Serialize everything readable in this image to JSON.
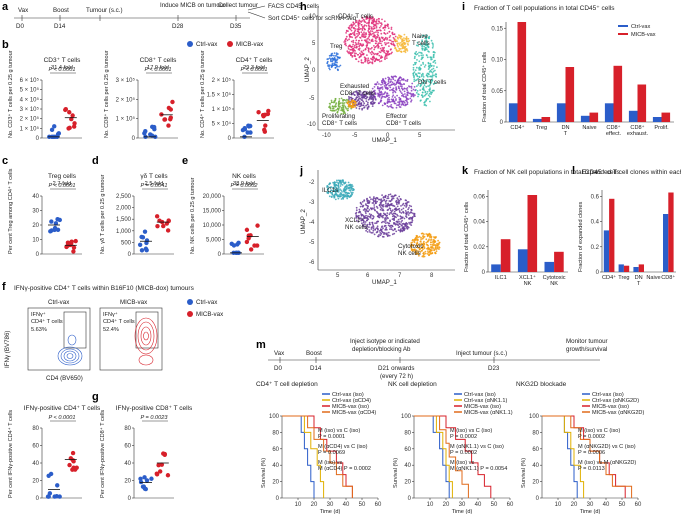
{
  "colors": {
    "ctrl": "#2b5dc9",
    "micb": "#d7202a",
    "cd4": "#e0307a",
    "naive": "#f6b93b",
    "dnt": "#3cbfae",
    "treg": "#2a6fdb",
    "exh": "#6a3d9a",
    "effector": "#8a3fbf",
    "prolif": "#76b041",
    "ilc1": "#39a9b9",
    "xcl1": "#6a3d9a",
    "cytotoxic": "#f39c12"
  },
  "panel_letters": {
    "a": "a",
    "b": "b",
    "c": "c",
    "d": "d",
    "e": "e",
    "f": "f",
    "g": "g",
    "h": "h",
    "i": "i",
    "j": "j",
    "k": "k",
    "l": "l",
    "m": "m"
  },
  "timeline_a": {
    "days": [
      "D0",
      "D14",
      "D28",
      "D35"
    ],
    "events": [
      "Vax",
      "Boost",
      "Tumour (s.c.)",
      "Induce MICB\non tumour",
      "Collect\ntumour"
    ],
    "notes": [
      "FACS CD45⁺ cells",
      "Sort CD45⁺ cells\nfor scRNA-seq"
    ]
  },
  "legend": {
    "ctrl": "Ctrl-vax",
    "micb": "MICB-vax"
  },
  "panels_b": [
    {
      "title": "CD3⁺ T cells",
      "fold": "31.4-fold",
      "p": "P < 0.0001",
      "ylabel": "No. CD3⁺ T cells per 0.25 g tumour",
      "yticks": [
        "0",
        "1 × 10⁵",
        "2 × 10⁵",
        "3 × 10⁵",
        "4 × 10⁵",
        "5 × 10⁵",
        "6 × 10⁵"
      ]
    },
    {
      "title": "CD8⁺ T cells",
      "fold": "17.9-fold",
      "p": "P < 0.0001",
      "ylabel": "No. CD8⁺ T cells per 0.25 g tumour",
      "yticks": [
        "0",
        "1 × 10⁵",
        "2 × 10⁵",
        "3 × 10⁵"
      ]
    },
    {
      "title": "CD4⁺ T cells",
      "fold": "29.3-fold",
      "p": "P < 0.0001",
      "ylabel": "No. CD4⁺ T cells per 0.25 g tumour",
      "yticks": [
        "0",
        "5 × 10⁴",
        "1 × 10⁵",
        "1.5 × 10⁵",
        "2 × 10⁵"
      ]
    }
  ],
  "panels_cde": [
    {
      "letter": "c",
      "title": "Treg cells",
      "fold": "2.7-fold",
      "p": "P < 0.0001",
      "ylabel": "Per cent Treg among CD4⁺ T cells",
      "yticks": [
        "0",
        "10",
        "20",
        "30",
        "40"
      ]
    },
    {
      "letter": "d",
      "title": "γδ T cells",
      "fold": "2.5-fold",
      "p": "P = 0.0041",
      "ylabel": "No. γδ T cells per 0.25 g tumour",
      "yticks": [
        "0",
        "500",
        "1,000",
        "1,500",
        "2,000",
        "2,500"
      ]
    },
    {
      "letter": "e",
      "title": "NK cells",
      "fold": "38.9-fold",
      "p": "P = 0.0002",
      "ylabel": "No. NK cells per 0.25 g tumour",
      "yticks": [
        "0",
        "5,000",
        "10,000",
        "15,000",
        "20,000"
      ]
    }
  ],
  "panel_f": {
    "title": "IFNγ-positive CD4⁺ T cells within B16F10 (MICB-dox) tumours",
    "ctrl_label": "Ctrl-vax",
    "micb_label": "MICB-vax",
    "gate_label": "IFNγ⁺\nCD4⁺ T cells",
    "ctrl_pct": "5.63%",
    "micb_pct": "52.4%",
    "xlabel": "CD4 (BV650)",
    "ylabel": "IFNγ (BV786)"
  },
  "panel_f2": {
    "title": "IFNγ-positive\nCD4⁺ T cells",
    "p": "P < 0.0001",
    "ylabel": "Per cent IFNγ-positive CD4⁺ T cells",
    "yticks": [
      "0",
      "20",
      "40",
      "60",
      "80"
    ]
  },
  "panel_g": {
    "title": "IFNγ-positive\nCD8⁺ T cells",
    "p": "P = 0.0023",
    "ylabel": "Per cent IFNγ-positive CD8⁺ T cells",
    "yticks": [
      "0",
      "20",
      "40",
      "60",
      "80"
    ]
  },
  "panel_h": {
    "xlabel": "UMAP_1",
    "ylabel": "UMAP_2",
    "xticks": [
      "-10",
      "-5",
      "0",
      "5"
    ],
    "yticks": [
      "-10",
      "-5",
      "0",
      "5",
      "10"
    ],
    "labels": {
      "cd4": "CD4⁺ T cells",
      "naive": "Naive\nT cells",
      "dnt": "DN T cells",
      "treg": "Treg",
      "exh": "Exhausted\nCD8⁺ T cells",
      "prolif": "Proliferating\nCD8⁺ T cells",
      "eff": "Effector\nCD8⁺ T cells"
    }
  },
  "panel_j": {
    "xlabel": "UMAP_1",
    "ylabel": "UMAP_2",
    "xticks": [
      "5",
      "6",
      "7",
      "8"
    ],
    "yticks": [
      "-2",
      "-3",
      "-4",
      "-5",
      "-6"
    ],
    "labels": {
      "ilc1": "ILC1s",
      "xcl1": "XCL1⁺\nNK cells",
      "cyto": "Cytotoxic\nNK cells"
    }
  },
  "chart_data": [
    {
      "type": "bar",
      "id": "i",
      "title": "Fraction of T cell populations in total CD45⁺ cells",
      "ylabel": "Fraction of total CD45⁺ cells",
      "ylim": [
        0,
        0.16
      ],
      "yticks": [
        "0",
        "0.05",
        "0.10",
        "0.15"
      ],
      "categories": [
        "CD4⁺",
        "Treg",
        "DN T",
        "Naive",
        "CD8⁺ effect.",
        "CD8⁺ exhaust.",
        "Prolif."
      ],
      "series": [
        {
          "name": "Ctrl-vax",
          "values": [
            0.03,
            0.005,
            0.03,
            0.01,
            0.03,
            0.018,
            0.008
          ]
        },
        {
          "name": "MICB-vax",
          "values": [
            0.16,
            0.008,
            0.088,
            0.015,
            0.09,
            0.06,
            0.015
          ]
        }
      ]
    },
    {
      "type": "bar",
      "id": "k",
      "title": "Fraction of NK cell populations in total CD45⁺ cells",
      "ylabel": "Fraction of total CD45⁺ cells",
      "ylim": [
        0,
        0.065
      ],
      "yticks": [
        "0",
        "0.02",
        "0.04",
        "0.06"
      ],
      "categories": [
        "ILC1",
        "XCL1⁺ NK",
        "Cytotoxic NK"
      ],
      "series": [
        {
          "name": "Ctrl-vax",
          "values": [
            0.006,
            0.018,
            0.008
          ]
        },
        {
          "name": "MICB-vax",
          "values": [
            0.026,
            0.061,
            0.016
          ]
        }
      ]
    },
    {
      "type": "bar",
      "id": "l",
      "title": "Expanded T cell clones within each subcluster",
      "ylabel": "Fraction of expanded clones",
      "ylim": [
        0,
        0.65
      ],
      "yticks": [
        "0",
        "0.2",
        "0.4",
        "0.6"
      ],
      "categories": [
        "CD4⁺",
        "Treg",
        "DN T",
        "Naive",
        "CD8⁺"
      ],
      "series": [
        {
          "name": "Ctrl-vax",
          "values": [
            0.33,
            0.06,
            0.04,
            0.0,
            0.46
          ]
        },
        {
          "name": "MICB-vax",
          "values": [
            0.58,
            0.05,
            0.06,
            0.0,
            0.63
          ]
        }
      ]
    }
  ],
  "timeline_m": {
    "days": [
      "D0",
      "D14",
      "D21 onwards\n(every 72 h)",
      "D23"
    ],
    "events": [
      "Vax",
      "Boost",
      "Inject isotype or indicated\ndepletion/blocking Ab",
      "Inject tumour (s.c.)",
      "Monitor tumour\ngrowth/survival"
    ]
  },
  "survival": [
    {
      "title": "CD4⁺ T cell depletion",
      "legend": [
        "Ctrl-vax (iso)",
        "Ctrl-vax (αCD4)",
        "MICB-vax (iso)",
        "MICB-vax (αCD4)"
      ],
      "annots": [
        "M (iso) vs C (iso)\nP = 0.0001",
        "M (αCD4) vs C (iso)\nP = 0.0069",
        "M (iso) vs\nM (αCD4) P = 0.0002"
      ]
    },
    {
      "title": "NK cell depletion",
      "legend": [
        "Ctrl-vax (iso)",
        "Ctrl-vax (αNK1.1)",
        "MICB-vax (iso)",
        "MICB-vax (αNK1.1)"
      ],
      "annots": [
        "M (iso) vs C (iso)\nP = 0.0002",
        "M (αNK1.1) vs C (iso)\nP = 0.0002",
        "M (iso) vs\nM (αNK1.1) P = 0.0054"
      ]
    },
    {
      "title": "NKG2D blockade",
      "legend": [
        "Ctrl-vax (iso)",
        "Ctrl-vax (αNKG2D)",
        "MICB-vax (iso)",
        "MICB-vax (αNKG2D)"
      ],
      "annots": [
        "M (iso) vs C (iso)\nP = 0.0002",
        "M (αNKG2D) vs C (iso)\nP = 0.0006",
        "M (iso) vs M (αNKG2D)\nP = 0.0113"
      ]
    }
  ],
  "survival_axes": {
    "ylabel": "Survival (%)",
    "xlabel": "Time (d)",
    "yticks": [
      "0",
      "20",
      "40",
      "60",
      "80",
      "100"
    ],
    "xticks": [
      "10",
      "20",
      "30",
      "40",
      "50",
      "60"
    ]
  }
}
